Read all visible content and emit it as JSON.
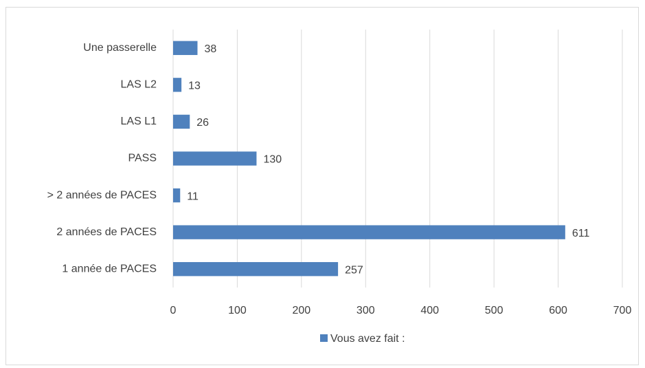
{
  "chart_data": {
    "type": "bar",
    "orientation": "horizontal",
    "categories": [
      "Une passerelle",
      "LAS L2",
      "LAS L1",
      "PASS",
      "> 2 années de PACES",
      "2 années de PACES",
      "1 année de PACES"
    ],
    "series": [
      {
        "name": "Vous avez fait :",
        "color": "#4f81bd",
        "values": [
          38,
          13,
          26,
          130,
          11,
          611,
          257
        ]
      }
    ],
    "xlim": [
      0,
      700
    ],
    "xticks": [
      0,
      100,
      200,
      300,
      400,
      500,
      600,
      700
    ],
    "grid": true,
    "legend": "bottom"
  }
}
